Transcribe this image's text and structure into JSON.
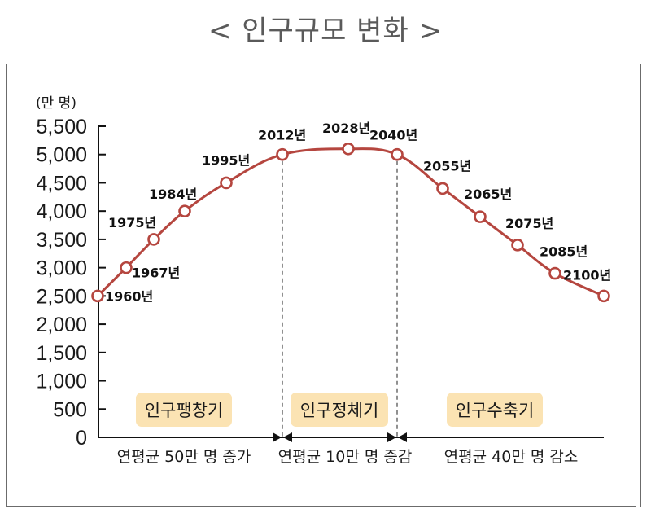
{
  "title": "< 인구규모 변화 >",
  "chart_data": {
    "type": "line",
    "title": "< 인구규모 변화 >",
    "ylabel": "(만 명)",
    "xlabel": "",
    "ylim": [
      0,
      5500
    ],
    "yticks": [
      0,
      500,
      1000,
      1500,
      2000,
      2500,
      3000,
      3500,
      4000,
      4500,
      5000,
      5500
    ],
    "ytick_labels": [
      "0",
      "500",
      "1,000",
      "1,500",
      "2,000",
      "2,500",
      "3,000",
      "3,500",
      "4,000",
      "4,500",
      "5,000",
      "5,500"
    ],
    "grid": false,
    "line_color": "#b5463f",
    "points": [
      {
        "year": 1960,
        "label": "1960년",
        "value": 2500
      },
      {
        "year": 1967,
        "label": "1967년",
        "value": 3000
      },
      {
        "year": 1975,
        "label": "1975년",
        "value": 3500
      },
      {
        "year": 1984,
        "label": "1984년",
        "value": 4000
      },
      {
        "year": 1995,
        "label": "1995년",
        "value": 4500
      },
      {
        "year": 2012,
        "label": "2012년",
        "value": 5000
      },
      {
        "year": 2028,
        "label": "2028년",
        "value": 5100
      },
      {
        "year": 2040,
        "label": "2040년",
        "value": 5000
      },
      {
        "year": 2055,
        "label": "2055년",
        "value": 4400
      },
      {
        "year": 2065,
        "label": "2065년",
        "value": 3900
      },
      {
        "year": 2075,
        "label": "2075년",
        "value": 3400
      },
      {
        "year": 2085,
        "label": "2085년",
        "value": 2900
      },
      {
        "year": 2100,
        "label": "2100년",
        "value": 2500
      }
    ],
    "phases": [
      {
        "name": "인구팽창기",
        "rate": "연평균 50만 명 증가",
        "from": 1960,
        "to": 2012
      },
      {
        "name": "인구정체기",
        "rate": "연평균 10만 명 증감",
        "from": 2012,
        "to": 2040
      },
      {
        "name": "인구수축기",
        "rate": "연평균 40만 명 감소",
        "from": 2040,
        "to": 2100
      }
    ],
    "phase_box_color": "#fbe3b3",
    "dividers": [
      2012,
      2040
    ]
  }
}
